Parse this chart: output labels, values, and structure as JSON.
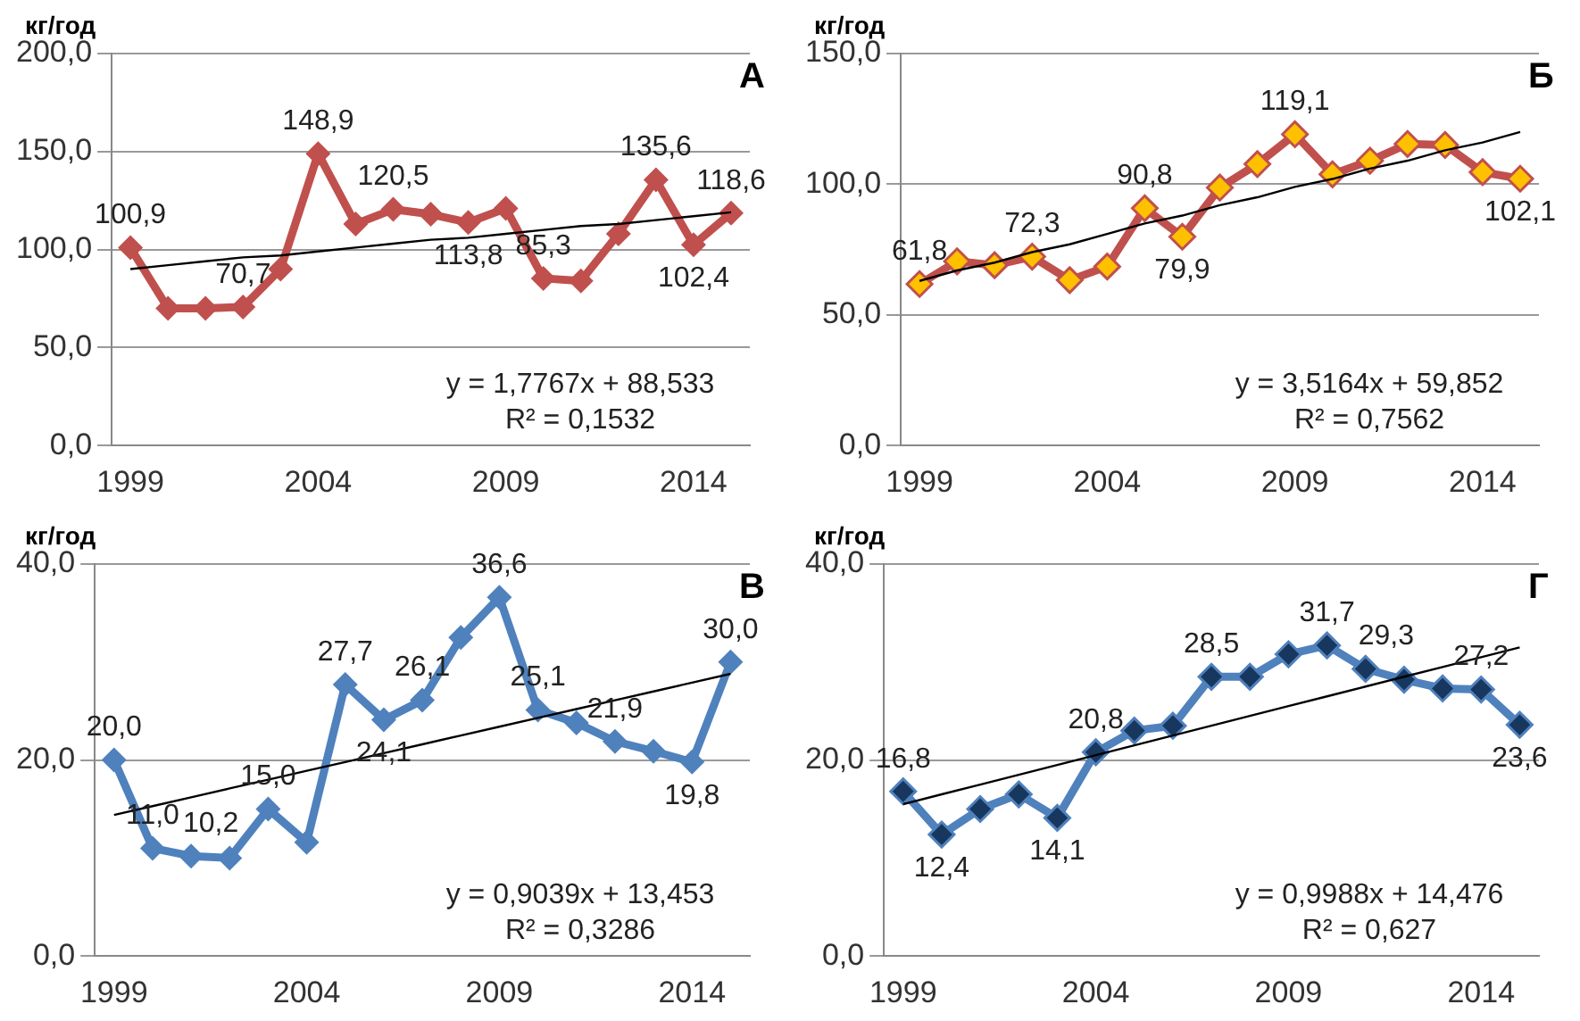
{
  "chart_data": [
    {
      "type": "line",
      "title": "А",
      "ylabel": "кг/год",
      "x": [
        1999,
        2000,
        2001,
        2002,
        2003,
        2004,
        2005,
        2006,
        2007,
        2008,
        2009,
        2010,
        2011,
        2012,
        2013,
        2014,
        2015
      ],
      "xlim": [
        1998.5,
        2015.5
      ],
      "xticks": [
        1999,
        2004,
        2009,
        2014
      ],
      "ylim": [
        0,
        200
      ],
      "yticks": [
        {
          "value": 0,
          "label": "0,0"
        },
        {
          "value": 50,
          "label": "50,0"
        },
        {
          "value": 100,
          "label": "100,0"
        },
        {
          "value": 150,
          "label": "150,0"
        },
        {
          "value": 200,
          "label": "200,0"
        }
      ],
      "grid": "y",
      "legend": false,
      "marker": "diamond",
      "annotations": [
        "y = 1,7767x + 88,533",
        "R² = 0,1532"
      ],
      "series": [
        {
          "color": "#c0504d",
          "values": [
            100.9,
            70,
            70,
            70.7,
            90,
            148.9,
            113,
            120.5,
            118,
            113.8,
            121,
            85.3,
            84,
            108,
            135.6,
            102.4,
            118.6
          ],
          "value_labels": [
            "100,9",
            null,
            null,
            "70,7",
            null,
            "148,9",
            null,
            "120,5",
            null,
            "113,8",
            null,
            "85,3",
            null,
            null,
            "135,6",
            "102,4",
            "118,6"
          ]
        },
        {
          "type": "line",
          "color": "#000000",
          "marker": "none",
          "values": [
            90,
            92,
            94,
            96,
            97,
            99,
            101,
            103,
            105,
            106,
            108,
            110,
            112,
            113,
            115,
            117,
            119
          ]
        }
      ]
    },
    {
      "type": "line",
      "title": "Б",
      "ylabel": "кг/год",
      "x": [
        1999,
        2000,
        2001,
        2002,
        2003,
        2004,
        2005,
        2006,
        2007,
        2008,
        2009,
        2010,
        2011,
        2012,
        2013,
        2014,
        2015
      ],
      "xlim": [
        1998.5,
        2015.5
      ],
      "xticks": [
        1999,
        2004,
        2009,
        2014
      ],
      "ylim": [
        0,
        150
      ],
      "yticks": [
        {
          "value": 0,
          "label": "0,0"
        },
        {
          "value": 50,
          "label": "50,0"
        },
        {
          "value": 100,
          "label": "100,0"
        },
        {
          "value": 150,
          "label": "150,0"
        }
      ],
      "grid": "y",
      "legend": false,
      "marker": "diamond",
      "annotations": [
        "y = 3,5164x + 59,852",
        "R² = 0,7562"
      ],
      "series": [
        {
          "color": "#c0504d",
          "colors": [
            "#ffc000",
            "#ffc000",
            "#ffc000",
            "#ffc000",
            "#ffc000",
            "#ffc000",
            "#ffc000",
            "#ffc000",
            "#ffc000",
            "#ffc000",
            "#ffc000",
            "#ffc000",
            "#ffc000",
            "#ffc000",
            "#ffc000",
            "#ffc000",
            "#ffc000"
          ],
          "values": [
            61.8,
            70.5,
            69,
            72.3,
            63.3,
            68.5,
            90.8,
            79.9,
            98.7,
            107.7,
            119.1,
            103.8,
            109,
            115.4,
            115,
            104.6,
            102.1
          ],
          "value_labels": [
            "61,8",
            null,
            null,
            "72,3",
            null,
            null,
            "90,8",
            "79,9",
            null,
            null,
            "119,1",
            null,
            null,
            null,
            null,
            null,
            "102,1"
          ]
        },
        {
          "type": "line",
          "color": "#000000",
          "marker": "none",
          "values": [
            63,
            67,
            70,
            74,
            77,
            81,
            85,
            88,
            92,
            95,
            99,
            102,
            106,
            109,
            113,
            116,
            120
          ]
        }
      ]
    },
    {
      "type": "line",
      "title": "В",
      "ylabel": "кг/год",
      "x": [
        1999,
        2000,
        2001,
        2002,
        2003,
        2004,
        2005,
        2006,
        2007,
        2008,
        2009,
        2010,
        2011,
        2012,
        2013,
        2014,
        2015
      ],
      "xlim": [
        1998.5,
        2015.5
      ],
      "xticks": [
        1999,
        2004,
        2009,
        2014
      ],
      "ylim": [
        0,
        40
      ],
      "yticks": [
        {
          "value": 0,
          "label": "0,0"
        },
        {
          "value": 20,
          "label": "20,0"
        },
        {
          "value": 40,
          "label": "40,0"
        }
      ],
      "grid": "y",
      "legend": false,
      "marker": "diamond",
      "annotations": [
        "y = 0,9039x + 13,453",
        "R² = 0,3286"
      ],
      "series": [
        {
          "color": "#4f81bd",
          "values": [
            20.0,
            11.0,
            10.2,
            10,
            15.0,
            11.6,
            27.7,
            24.1,
            26.1,
            32.5,
            36.6,
            25.1,
            23.8,
            21.9,
            20.9,
            19.8,
            30.0
          ],
          "value_labels": [
            "20,0",
            "11,0",
            "10,2",
            null,
            "15,0",
            null,
            "27,7",
            "24,1",
            "26,1",
            null,
            "36,6",
            "25,1",
            null,
            "21,9",
            null,
            "19,8",
            "30,0"
          ]
        },
        {
          "type": "line",
          "color": "#000000",
          "marker": "none",
          "values": [
            14.4,
            15.3,
            16.2,
            17.1,
            18.0,
            18.9,
            19.8,
            20.7,
            21.6,
            22.5,
            23.4,
            24.3,
            25.2,
            26.1,
            27.0,
            27.9,
            28.8
          ]
        }
      ]
    },
    {
      "type": "line",
      "title": "Г",
      "ylabel": "кг/год",
      "x": [
        1999,
        2000,
        2001,
        2002,
        2003,
        2004,
        2005,
        2006,
        2007,
        2008,
        2009,
        2010,
        2011,
        2012,
        2013,
        2014,
        2015
      ],
      "xlim": [
        1998.5,
        2015.5
      ],
      "xticks": [
        1999,
        2004,
        2009,
        2014
      ],
      "ylim": [
        0,
        40
      ],
      "yticks": [
        {
          "value": 0,
          "label": "0,0"
        },
        {
          "value": 20,
          "label": "20,0"
        },
        {
          "value": 40,
          "label": "40,0"
        }
      ],
      "grid": "y",
      "legend": false,
      "marker": "diamond",
      "annotations": [
        "y = 0,9988x + 14,476",
        "R² = 0,627"
      ],
      "series": [
        {
          "color": "#4f81bd",
          "colors": [
            "#17375e",
            "#17375e",
            "#17375e",
            "#17375e",
            "#17375e",
            "#17375e",
            "#17375e",
            "#17375e",
            "#17375e",
            "#17375e",
            "#17375e",
            "#17375e",
            "#17375e",
            "#17375e",
            "#17375e",
            "#17375e",
            "#17375e"
          ],
          "values": [
            16.8,
            12.4,
            15,
            16.5,
            14.1,
            20.8,
            23,
            23.5,
            28.5,
            28.5,
            30.8,
            31.7,
            29.3,
            28.2,
            27.3,
            27.2,
            23.6
          ],
          "value_labels": [
            "16,8",
            "12,4",
            null,
            null,
            "14,1",
            "20,8",
            null,
            null,
            "28,5",
            null,
            null,
            "31,7",
            "29,3",
            null,
            null,
            "27,2",
            "23,6"
          ]
        },
        {
          "type": "line",
          "color": "#000000",
          "marker": "none",
          "values": [
            15.5,
            16.5,
            17.5,
            18.5,
            19.5,
            20.5,
            21.5,
            22.5,
            23.5,
            24.5,
            25.5,
            26.5,
            27.5,
            28.5,
            29.5,
            30.5,
            31.5
          ]
        }
      ]
    }
  ]
}
